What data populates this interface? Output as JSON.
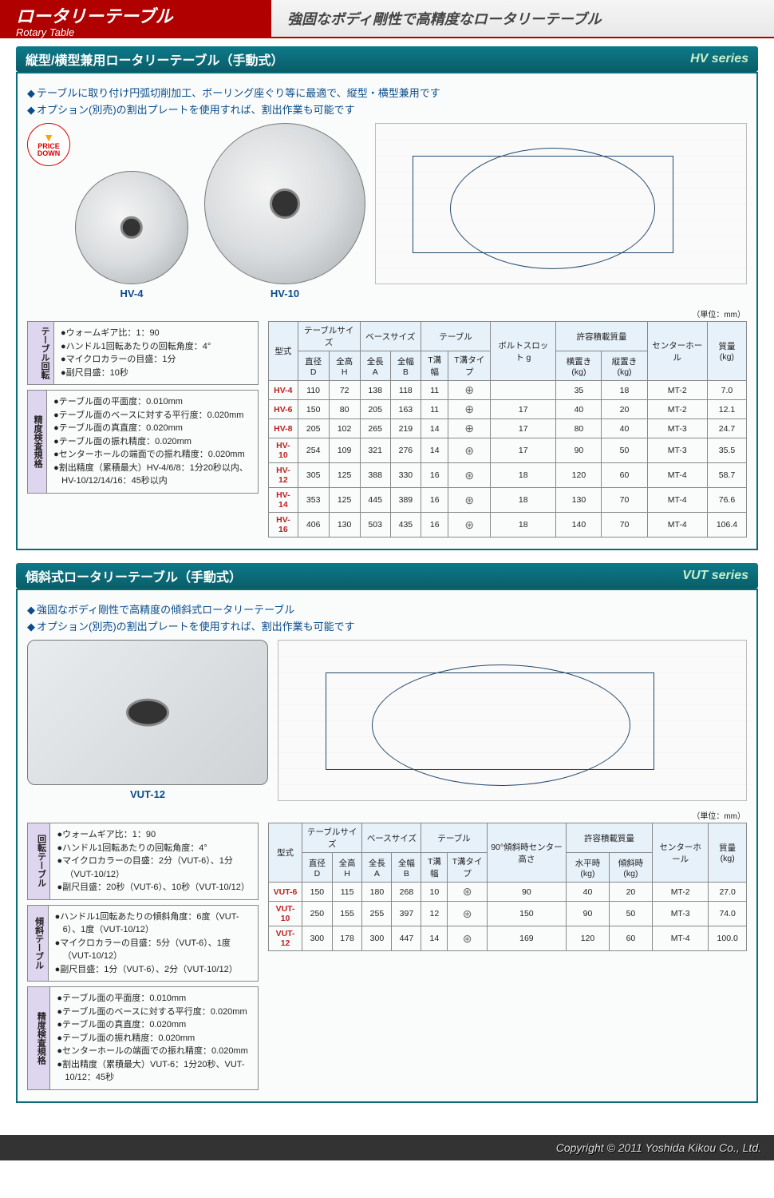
{
  "header": {
    "title_jp": "ロータリーテーブル",
    "title_en": "Rotary Table",
    "tagline": "強固なボディ剛性で高精度なロータリーテーブル"
  },
  "hv": {
    "section_title": "縦型/横型兼用ロータリーテーブル（手動式）",
    "series": "HV series",
    "bullets": [
      "テーブルに取り付け円弧切削加工、ボーリング座ぐり等に最適で、縦型・横型兼用です",
      "オプション(別売)の割出プレートを使用すれば、割出作業も可能です"
    ],
    "badge": {
      "line1": "PRICE",
      "line2": "DOWN"
    },
    "photo_labels": {
      "p1": "HV-4",
      "p2": "HV-10"
    },
    "units": "（単位：mm）",
    "spec_boxes": [
      {
        "label": "テーブル回転",
        "lines": [
          "ウォームギア比：1：90",
          "ハンドル1回転あたりの回転角度：4°",
          "マイクロカラーの目盛：1分",
          "副尺目盛：10秒"
        ]
      },
      {
        "label": "精度検査規格",
        "lines": [
          "テーブル面の平面度：0.010mm",
          "テーブル面のベースに対する平行度：0.020mm",
          "テーブル面の真直度：0.020mm",
          "テーブル面の振れ精度：0.020mm",
          "センターホールの端面での振れ精度：0.020mm",
          "割出精度（累積最大）HV-4/6/8：1分20秒以内、HV-10/12/14/16：45秒以内"
        ]
      }
    ],
    "table": {
      "group_headers": [
        "型式",
        "テーブルサイズ",
        "ベースサイズ",
        "テーブル",
        "ボルトスロット g",
        "許容積載質量",
        "センターホール",
        "質量 (kg)"
      ],
      "sub_headers": [
        "",
        "直径 D",
        "全高 H",
        "全長 A",
        "全幅 B",
        "T溝幅",
        "T溝タイプ",
        "",
        "横置き (kg)",
        "縦置き (kg)",
        "",
        ""
      ],
      "rows": [
        [
          "HV-4",
          "110",
          "72",
          "138",
          "118",
          "11",
          "⊕",
          "",
          "35",
          "18",
          "MT-2",
          "7.0"
        ],
        [
          "HV-6",
          "150",
          "80",
          "205",
          "163",
          "11",
          "⊕",
          "17",
          "40",
          "20",
          "MT-2",
          "12.1"
        ],
        [
          "HV-8",
          "205",
          "102",
          "265",
          "219",
          "14",
          "⊕",
          "17",
          "80",
          "40",
          "MT-3",
          "24.7"
        ],
        [
          "HV-10",
          "254",
          "109",
          "321",
          "276",
          "14",
          "⊛",
          "17",
          "90",
          "50",
          "MT-3",
          "35.5"
        ],
        [
          "HV-12",
          "305",
          "125",
          "388",
          "330",
          "16",
          "⊛",
          "18",
          "120",
          "60",
          "MT-4",
          "58.7"
        ],
        [
          "HV-14",
          "353",
          "125",
          "445",
          "389",
          "16",
          "⊛",
          "18",
          "130",
          "70",
          "MT-4",
          "76.6"
        ],
        [
          "HV-16",
          "406",
          "130",
          "503",
          "435",
          "16",
          "⊛",
          "18",
          "140",
          "70",
          "MT-4",
          "106.4"
        ]
      ]
    }
  },
  "vut": {
    "section_title": "傾斜式ロータリーテーブル（手動式）",
    "series": "VUT series",
    "bullets": [
      "強固なボディ剛性で高精度の傾斜式ロータリーテーブル",
      "オプション(別売)の割出プレートを使用すれば、割出作業も可能です"
    ],
    "photo_label": "VUT-12",
    "units": "（単位：mm）",
    "spec_boxes": [
      {
        "label": "回転テーブル",
        "lines": [
          "ウォームギア比：1：90",
          "ハンドル1回転あたりの回転角度：4°",
          "マイクロカラーの目盛：2分（VUT-6）、1分（VUT-10/12）",
          "副尺目盛：20秒（VUT-6）、10秒（VUT-10/12）"
        ]
      },
      {
        "label": "傾斜テーブル",
        "lines": [
          "ハンドル1回転あたりの傾斜角度：6度（VUT-6）、1度（VUT-10/12）",
          "マイクロカラーの目盛：5分（VUT-6）、1度（VUT-10/12）",
          "副尺目盛：1分（VUT-6）、2分（VUT-10/12）"
        ]
      },
      {
        "label": "精度検査規格",
        "lines": [
          "テーブル面の平面度：0.010mm",
          "テーブル面のベースに対する平行度：0.020mm",
          "テーブル面の真直度：0.020mm",
          "テーブル面の振れ精度：0.020mm",
          "センターホールの端面での振れ精度：0.020mm",
          "割出精度（累積最大）VUT-6：1分20秒、VUT-10/12：45秒"
        ]
      }
    ],
    "table": {
      "group_headers": [
        "型式",
        "テーブルサイズ",
        "ベースサイズ",
        "テーブル",
        "90°傾斜時センター高さ",
        "許容積載質量",
        "センターホール",
        "質量 (kg)"
      ],
      "sub_headers": [
        "",
        "直径 D",
        "全高 H",
        "全長 A",
        "全幅 B",
        "T溝幅",
        "T溝タイプ",
        "",
        "水平時 (kg)",
        "傾斜時 (kg)",
        "",
        ""
      ],
      "rows": [
        [
          "VUT-6",
          "150",
          "115",
          "180",
          "268",
          "10",
          "⊛",
          "90",
          "40",
          "20",
          "MT-2",
          "27.0"
        ],
        [
          "VUT-10",
          "250",
          "155",
          "255",
          "397",
          "12",
          "⊛",
          "150",
          "90",
          "50",
          "MT-3",
          "74.0"
        ],
        [
          "VUT-12",
          "300",
          "178",
          "300",
          "447",
          "14",
          "⊛",
          "169",
          "120",
          "60",
          "MT-4",
          "100.0"
        ]
      ]
    }
  },
  "footer": "Copyright © 2011 Yoshida Kikou Co., Ltd."
}
